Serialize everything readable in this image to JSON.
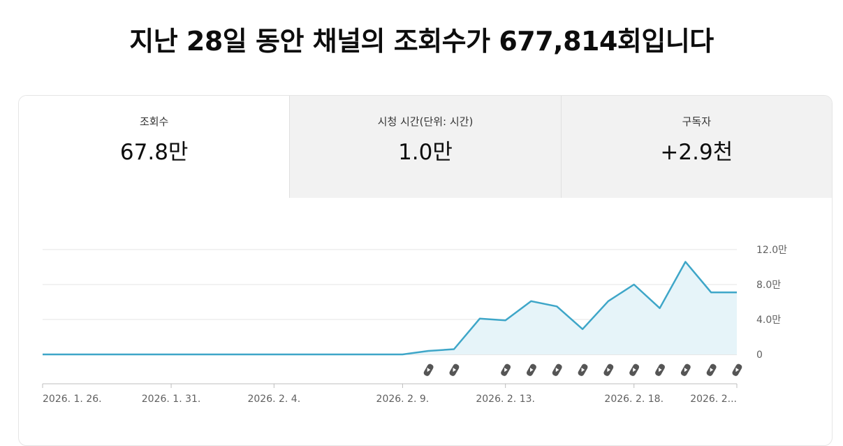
{
  "headline": "지난 28일 동안 채널의 조회수가 677,814회입니다",
  "tabs": [
    {
      "label": "조회수",
      "value": "67.8만",
      "active": true
    },
    {
      "label": "시청 시간(단위: 시간)",
      "value": "1.0만",
      "active": false
    },
    {
      "label": "구독자",
      "value": "+2.9천",
      "active": false
    }
  ],
  "icons": {
    "shorts_marker": "shorts-icon"
  },
  "colors": {
    "line": "#3ea6c8",
    "fill": "#e6f4f9",
    "grid": "#e5e5e5",
    "axis": "#999999"
  },
  "chart_data": {
    "type": "area",
    "x": [
      "2026-01-26",
      "2026-01-27",
      "2026-01-28",
      "2026-01-29",
      "2026-01-30",
      "2026-01-31",
      "2026-02-01",
      "2026-02-02",
      "2026-02-03",
      "2026-02-04",
      "2026-02-05",
      "2026-02-06",
      "2026-02-07",
      "2026-02-08",
      "2026-02-09",
      "2026-02-10",
      "2026-02-11",
      "2026-02-12",
      "2026-02-13",
      "2026-02-14",
      "2026-02-15",
      "2026-02-16",
      "2026-02-17",
      "2026-02-18",
      "2026-02-19",
      "2026-02-20",
      "2026-02-21",
      "2026-02-22"
    ],
    "series": [
      {
        "values": [
          0,
          0,
          0,
          0,
          0,
          0,
          0,
          0,
          0,
          0,
          0,
          0,
          0,
          0,
          0,
          4000,
          6000,
          41000,
          39000,
          61000,
          55000,
          29000,
          61000,
          80000,
          53000,
          106000,
          71000,
          71000
        ]
      }
    ],
    "shorts_markers": [
      "2026-02-10",
      "2026-02-11",
      "2026-02-13",
      "2026-02-14",
      "2026-02-15",
      "2026-02-16",
      "2026-02-17",
      "2026-02-18",
      "2026-02-19",
      "2026-02-20",
      "2026-02-21",
      "2026-02-22"
    ],
    "yticks": [
      {
        "value": 0,
        "label": "0"
      },
      {
        "value": 40000,
        "label": "4.0만"
      },
      {
        "value": 80000,
        "label": "8.0만"
      },
      {
        "value": 120000,
        "label": "12.0만"
      }
    ],
    "xticks": [
      {
        "date": "2026-01-26",
        "label": "2026. 1. 26."
      },
      {
        "date": "2026-01-31",
        "label": "2026. 1. 31."
      },
      {
        "date": "2026-02-04",
        "label": "2026. 2. 4."
      },
      {
        "date": "2026-02-09",
        "label": "2026. 2. 9."
      },
      {
        "date": "2026-02-13",
        "label": "2026. 2. 13."
      },
      {
        "date": "2026-02-18",
        "label": "2026. 2. 18."
      },
      {
        "date": "2026-02-22",
        "label": "2026. 2..."
      }
    ],
    "ylim": [
      0,
      120000
    ],
    "grid": true
  }
}
